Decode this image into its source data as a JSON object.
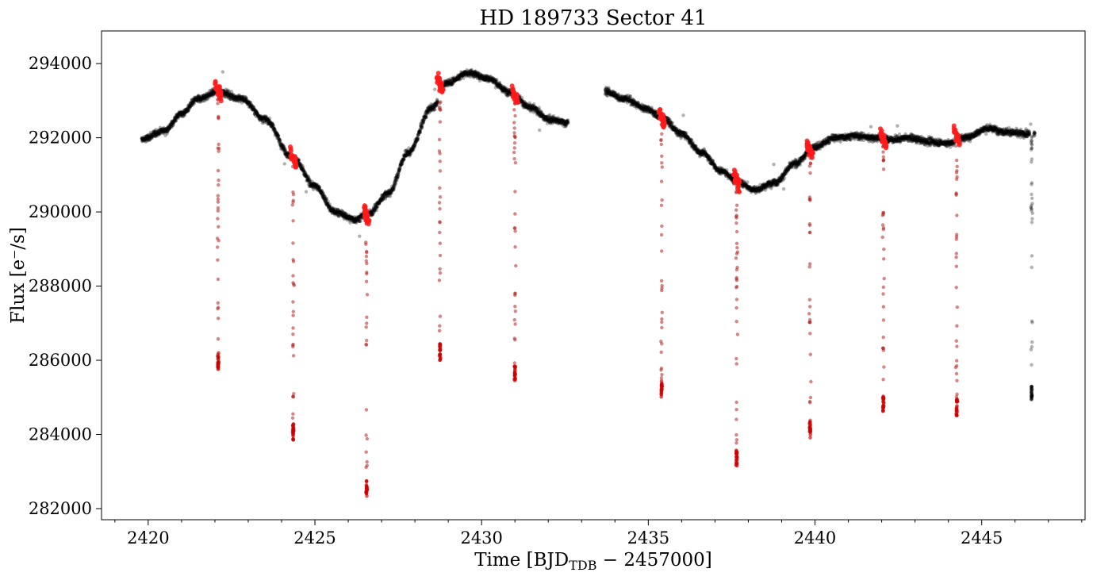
{
  "chart_data": {
    "type": "scatter",
    "title": "HD 189733 Sector 41",
    "xlabel_main": "Time [BJD",
    "xlabel_sub": "TDB",
    "xlabel_tail": " − 2457000]",
    "ylabel": "Flux [e⁻/s]",
    "xlim": [
      2418.6,
      2448.1
    ],
    "ylim": [
      281700,
      294880
    ],
    "x_ticks": [
      2420,
      2425,
      2430,
      2435,
      2440,
      2445
    ],
    "x_tick_labels": [
      "2420",
      "2425",
      "2430",
      "2435",
      "2440",
      "2445"
    ],
    "x_minor_step": 1,
    "y_ticks": [
      282000,
      284000,
      286000,
      288000,
      290000,
      292000,
      294000
    ],
    "y_tick_labels": [
      "282000",
      "284000",
      "286000",
      "288000",
      "290000",
      "292000",
      "294000"
    ],
    "grid": false,
    "series": [
      {
        "role": "baseline",
        "color": "#000000",
        "opacity": 0.3,
        "segments": [
          [
            [
              2419.8,
              291950
            ],
            [
              2420.5,
              292200
            ],
            [
              2421.0,
              292650
            ],
            [
              2421.5,
              293050
            ],
            [
              2422.1,
              293250
            ],
            [
              2422.8,
              293050
            ],
            [
              2423.5,
              292500
            ],
            [
              2424.3,
              291500
            ],
            [
              2425.0,
              290700
            ],
            [
              2425.6,
              290000
            ],
            [
              2426.2,
              289800
            ],
            [
              2426.6,
              289950
            ],
            [
              2427.2,
              290500
            ],
            [
              2427.8,
              291600
            ],
            [
              2428.5,
              292800
            ],
            [
              2429.0,
              293500
            ],
            [
              2429.6,
              293750
            ],
            [
              2430.2,
              293600
            ],
            [
              2430.8,
              293250
            ],
            [
              2431.5,
              292800
            ],
            [
              2432.0,
              292500
            ],
            [
              2432.6,
              292400
            ]
          ],
          [
            [
              2433.7,
              293250
            ],
            [
              2434.3,
              293050
            ],
            [
              2434.9,
              292800
            ],
            [
              2435.4,
              292550
            ],
            [
              2436.0,
              292100
            ],
            [
              2436.6,
              291600
            ],
            [
              2437.2,
              291100
            ],
            [
              2437.7,
              290800
            ],
            [
              2438.2,
              290600
            ],
            [
              2438.8,
              290800
            ],
            [
              2439.4,
              291300
            ],
            [
              2440.0,
              291750
            ],
            [
              2440.6,
              292000
            ],
            [
              2441.2,
              292050
            ],
            [
              2441.8,
              292000
            ],
            [
              2442.3,
              291950
            ],
            [
              2442.8,
              292000
            ],
            [
              2443.4,
              291900
            ],
            [
              2444.0,
              291850
            ],
            [
              2444.5,
              292000
            ],
            [
              2445.2,
              292250
            ],
            [
              2445.8,
              292150
            ],
            [
              2446.3,
              292100
            ],
            [
              2446.6,
              292100
            ]
          ]
        ]
      },
      {
        "role": "transits",
        "color": "#b22222",
        "highlight_color": "#ff1a1a",
        "events": [
          {
            "t": 2422.1,
            "base": 293280,
            "min": 285750,
            "dir": 1
          },
          {
            "t": 2424.35,
            "base": 291450,
            "min": 283850,
            "dir": 1
          },
          {
            "t": 2426.55,
            "base": 289900,
            "min": 282300,
            "dir": 1
          },
          {
            "t": 2428.75,
            "base": 293450,
            "min": 286000,
            "dir": 1
          },
          {
            "t": 2431.0,
            "base": 293150,
            "min": 285400,
            "dir": 1
          },
          {
            "t": 2435.4,
            "base": 292550,
            "min": 285000,
            "dir": 1
          },
          {
            "t": 2437.65,
            "base": 290850,
            "min": 283150,
            "dir": 1
          },
          {
            "t": 2439.85,
            "base": 291650,
            "min": 283900,
            "dir": 1
          },
          {
            "t": 2442.05,
            "base": 291950,
            "min": 284600,
            "dir": 1
          },
          {
            "t": 2444.25,
            "base": 292050,
            "min": 284500,
            "dir": 1
          },
          {
            "t": 2446.5,
            "base": 292100,
            "min": 284850,
            "dir": 0
          }
        ]
      }
    ]
  }
}
